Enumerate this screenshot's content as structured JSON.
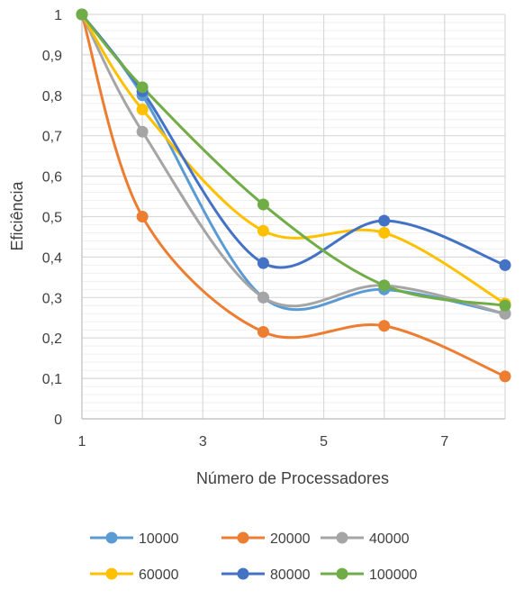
{
  "chart_data": {
    "type": "line",
    "smooth": true,
    "title": "",
    "xlabel": "Número de Processadores",
    "ylabel": "Eficiência",
    "xlim": [
      1,
      8
    ],
    "ylim": [
      0,
      1
    ],
    "x_ticks": [
      1,
      3,
      5,
      7
    ],
    "x_tick_labels": [
      "1",
      "3",
      "5",
      "7"
    ],
    "y_ticks": [
      0,
      0.1,
      0.2,
      0.3,
      0.4,
      0.5,
      0.6,
      0.7,
      0.8,
      0.9,
      1
    ],
    "y_tick_labels": [
      "0",
      "0,1",
      "0,2",
      "0,3",
      "0,4",
      "0,5",
      "0,6",
      "0,7",
      "0,8",
      "0,9",
      "1"
    ],
    "grid": true,
    "legend_position": "bottom",
    "x": [
      1,
      2,
      4,
      6,
      8
    ],
    "series": [
      {
        "name": "10000",
        "color": "#5b9bd5",
        "values": [
          1,
          0.8,
          0.3,
          0.32,
          0.26
        ]
      },
      {
        "name": "20000",
        "color": "#ed7d31",
        "values": [
          1,
          0.5,
          0.215,
          0.23,
          0.105
        ]
      },
      {
        "name": "40000",
        "color": "#a5a5a5",
        "values": [
          1,
          0.71,
          0.3,
          0.33,
          0.26
        ]
      },
      {
        "name": "60000",
        "color": "#ffc000",
        "values": [
          1,
          0.765,
          0.465,
          0.46,
          0.285
        ]
      },
      {
        "name": "80000",
        "color": "#4472c4",
        "values": [
          1,
          0.81,
          0.385,
          0.49,
          0.38
        ]
      },
      {
        "name": "100000",
        "color": "#70ad47",
        "values": [
          1,
          0.82,
          0.53,
          0.33,
          0.28
        ]
      }
    ]
  }
}
